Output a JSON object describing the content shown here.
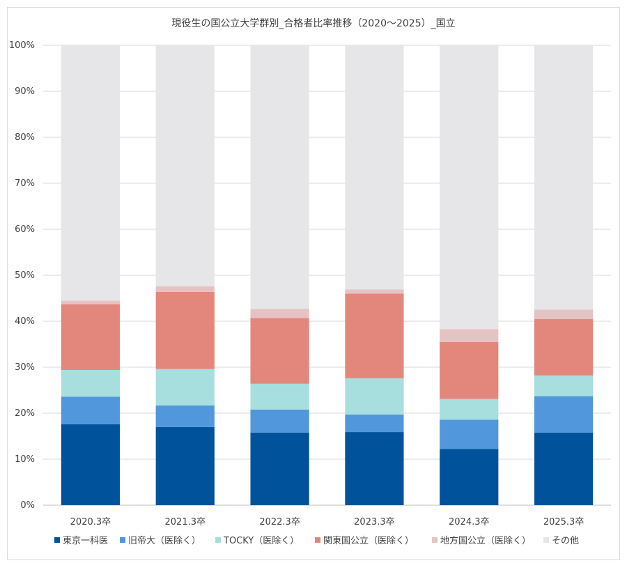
{
  "chart_data": {
    "type": "bar",
    "stacked": true,
    "percent": true,
    "title": "現役生の国公立大学群別_合格者比率推移（2020～2025）_国立",
    "categories": [
      "2020.3卒",
      "2021.3卒",
      "2022.3卒",
      "2023.3卒",
      "2024.3卒",
      "2025.3卒"
    ],
    "series": [
      {
        "name": "東京一科医",
        "color": "#00539b",
        "values": [
          17.6,
          17.0,
          15.8,
          15.9,
          12.2,
          15.8
        ]
      },
      {
        "name": "旧帝大（医除く）",
        "color": "#5097dc",
        "values": [
          6.0,
          4.7,
          5.0,
          3.8,
          6.4,
          7.9
        ]
      },
      {
        "name": "TOCKY（医除く）",
        "color": "#a7dede",
        "values": [
          5.8,
          7.9,
          5.6,
          7.9,
          4.5,
          4.5
        ]
      },
      {
        "name": "関東国公立（医除く）",
        "color": "#e3877c",
        "values": [
          14.3,
          16.8,
          14.3,
          18.4,
          12.4,
          12.3
        ]
      },
      {
        "name": "地方国公立（医除く）",
        "color": "#e6c3c3",
        "values": [
          0.8,
          1.2,
          2.0,
          0.9,
          2.8,
          2.0
        ]
      },
      {
        "name": "その他",
        "color": "#e6e6e8",
        "values": [
          55.5,
          52.4,
          57.3,
          53.1,
          61.7,
          57.5
        ]
      }
    ],
    "ylim": [
      0,
      100
    ],
    "yticks": [
      "0%",
      "10%",
      "20%",
      "30%",
      "40%",
      "50%",
      "60%",
      "70%",
      "80%",
      "90%",
      "100%"
    ],
    "grid": true,
    "legend_position": "bottom"
  }
}
